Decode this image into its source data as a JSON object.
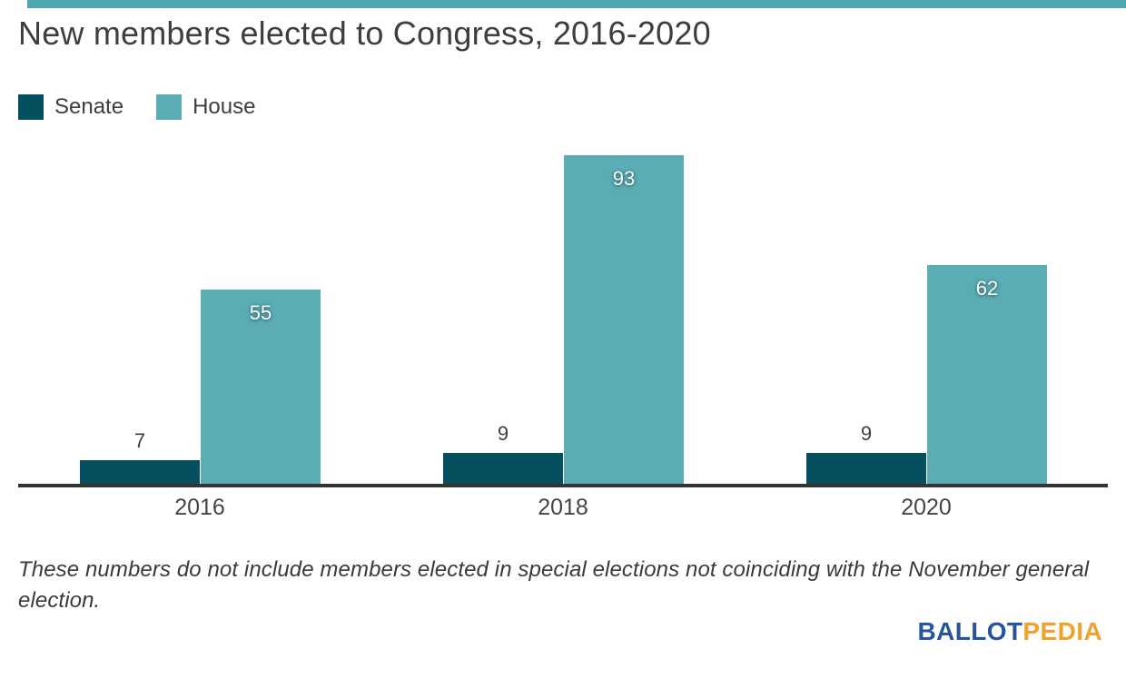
{
  "page": {
    "background": "#ffffff",
    "accent_bar_color": "#4fa7b1"
  },
  "title": "New members elected to Congress, 2016-2020",
  "legend": [
    {
      "label": "Senate",
      "color": "#04505e"
    },
    {
      "label": "House",
      "color": "#5aacb5"
    }
  ],
  "chart_data": {
    "type": "bar",
    "title": "New members elected to Congress, 2016-2020",
    "categories": [
      "2016",
      "2018",
      "2020"
    ],
    "series": [
      {
        "name": "Senate",
        "color": "#04505e",
        "values": [
          7,
          9,
          9
        ]
      },
      {
        "name": "House",
        "color": "#5aacb5",
        "values": [
          55,
          93,
          62
        ]
      }
    ],
    "xlabel": "",
    "ylabel": "",
    "ylim": [
      0,
      95
    ],
    "grid": false,
    "legend_position": "top-left",
    "value_labels": true,
    "axis_color": "#333333"
  },
  "footnote": "These numbers do not include members elected in special elections not coinciding with the November general election.",
  "logo": {
    "part1": "BALLOT",
    "part2": "PEDIA",
    "color1": "#27549e",
    "color2": "#f0a32b"
  }
}
